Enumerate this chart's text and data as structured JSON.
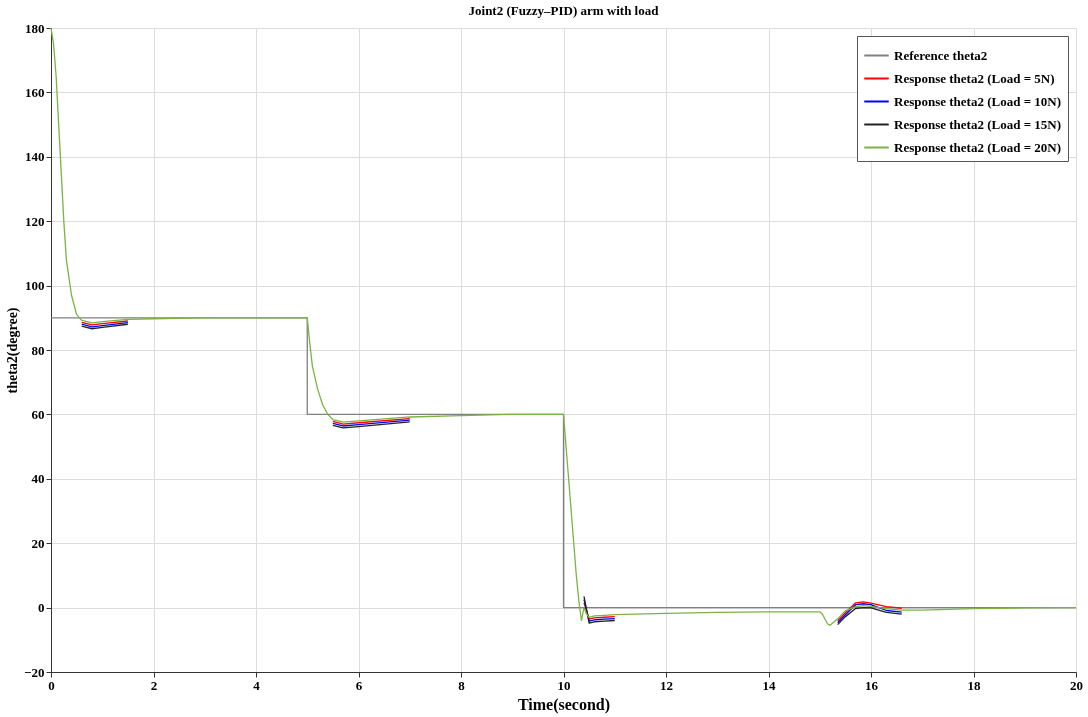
{
  "chart_data": {
    "type": "line",
    "title": "Joint2 (Fuzzy–PID) arm with load",
    "xlabel": "Time(second)",
    "ylabel": "theta2(degree)",
    "xlim": [
      0,
      20
    ],
    "xticks": [
      0,
      2,
      4,
      6,
      8,
      10,
      12,
      14,
      16,
      18,
      20
    ],
    "ylim": [
      -20,
      180
    ],
    "yticks": [
      -20,
      0,
      20,
      40,
      60,
      80,
      100,
      120,
      140,
      160,
      180
    ],
    "grid": true,
    "legend": "top right",
    "line_style": "solid",
    "marker": "none",
    "series": [
      {
        "name": "Reference theta2",
        "color": "#808080",
        "x": [
          0,
          5,
          5,
          10,
          10,
          20
        ],
        "values": [
          90,
          90,
          60,
          60,
          0,
          0
        ]
      },
      {
        "name": "Response theta2 (Load = 5N)",
        "color": "#ff0000",
        "x": [
          0.6,
          0.8,
          1,
          1.5,
          2,
          5.5,
          5.7,
          6,
          7,
          8,
          10.4,
          10.5,
          10.6,
          10.8,
          11,
          12,
          15.35,
          15.5,
          15.7,
          15.85,
          16,
          16.3,
          16.6
        ],
        "values": [
          88.6,
          87.8,
          88.2,
          89,
          null,
          57.8,
          57,
          57.4,
          58.7,
          null,
          1.5,
          -3.6,
          -3.2,
          -3,
          -2.8,
          null,
          -4.1,
          -1.6,
          1.5,
          1.8,
          1.4,
          0.3,
          -0.2
        ]
      },
      {
        "name": "Response theta2 (Load = 10N)",
        "color": "#0000ff",
        "x": [
          0.6,
          0.8,
          1,
          1.5,
          2,
          5.5,
          5.7,
          6,
          7,
          8,
          10.4,
          10.5,
          10.6,
          10.8,
          11,
          12,
          15.35,
          15.5,
          15.7,
          15.85,
          16,
          16.3,
          16.6
        ],
        "values": [
          88,
          87.2,
          87.6,
          88.5,
          null,
          57.2,
          56.4,
          56.8,
          58.2,
          null,
          2.5,
          -4.2,
          -3.8,
          -3.6,
          -3.4,
          null,
          -4.7,
          -2.2,
          0.9,
          1.2,
          0.9,
          -0.9,
          -1.4
        ]
      },
      {
        "name": "Response theta2 (Load = 15N)",
        "color": "#222222",
        "x": [
          0.6,
          0.8,
          1,
          1.5,
          2,
          5.5,
          5.7,
          6,
          7,
          8,
          10.4,
          10.5,
          10.6,
          10.8,
          11,
          12,
          15.35,
          15.5,
          15.7,
          15.85,
          16,
          16.3,
          16.6
        ],
        "values": [
          87.4,
          86.6,
          87,
          88,
          null,
          56.6,
          55.8,
          56.2,
          57.7,
          null,
          3.5,
          -4.8,
          -4.4,
          -4.2,
          -4,
          null,
          -5.3,
          -2.8,
          -0.3,
          0,
          -0.1,
          -1.5,
          -2
        ]
      },
      {
        "name": "Response theta2 (Load = 20N)",
        "color": "#7cb342",
        "x": [
          0,
          0.05,
          0.1,
          0.15,
          0.2,
          0.25,
          0.3,
          0.4,
          0.5,
          0.6,
          0.8,
          1,
          1.5,
          2,
          3,
          4,
          5,
          5.05,
          5.1,
          5.2,
          5.3,
          5.4,
          5.5,
          5.7,
          6,
          7,
          8,
          9,
          10,
          10.05,
          10.1,
          10.15,
          10.2,
          10.25,
          10.3,
          10.35,
          10.4,
          10.45,
          10.5,
          10.6,
          10.8,
          11,
          12,
          13,
          14,
          15,
          15.05,
          15.15,
          15.2,
          15.35,
          15.5,
          15.7,
          15.85,
          16,
          16.3,
          16.6,
          17,
          18,
          19,
          20
        ],
        "values": [
          180,
          175,
          165,
          150,
          135,
          120,
          108,
          97,
          91,
          89.2,
          88.4,
          88.8,
          89.5,
          89.7,
          90,
          90,
          90,
          82,
          75,
          68,
          63,
          60,
          58.4,
          57.6,
          58,
          59.2,
          59.6,
          60,
          60,
          50,
          40,
          30,
          20,
          10,
          2,
          -4,
          0,
          -2,
          -3,
          -2.6,
          -2.4,
          -2.2,
          -1.8,
          -1.5,
          -1.3,
          -1.3,
          -2,
          -5,
          -5.5,
          -3.5,
          -1,
          0.3,
          0.6,
          0.4,
          -0.3,
          -0.8,
          -0.8,
          -0.3,
          -0.1,
          0
        ]
      }
    ]
  }
}
